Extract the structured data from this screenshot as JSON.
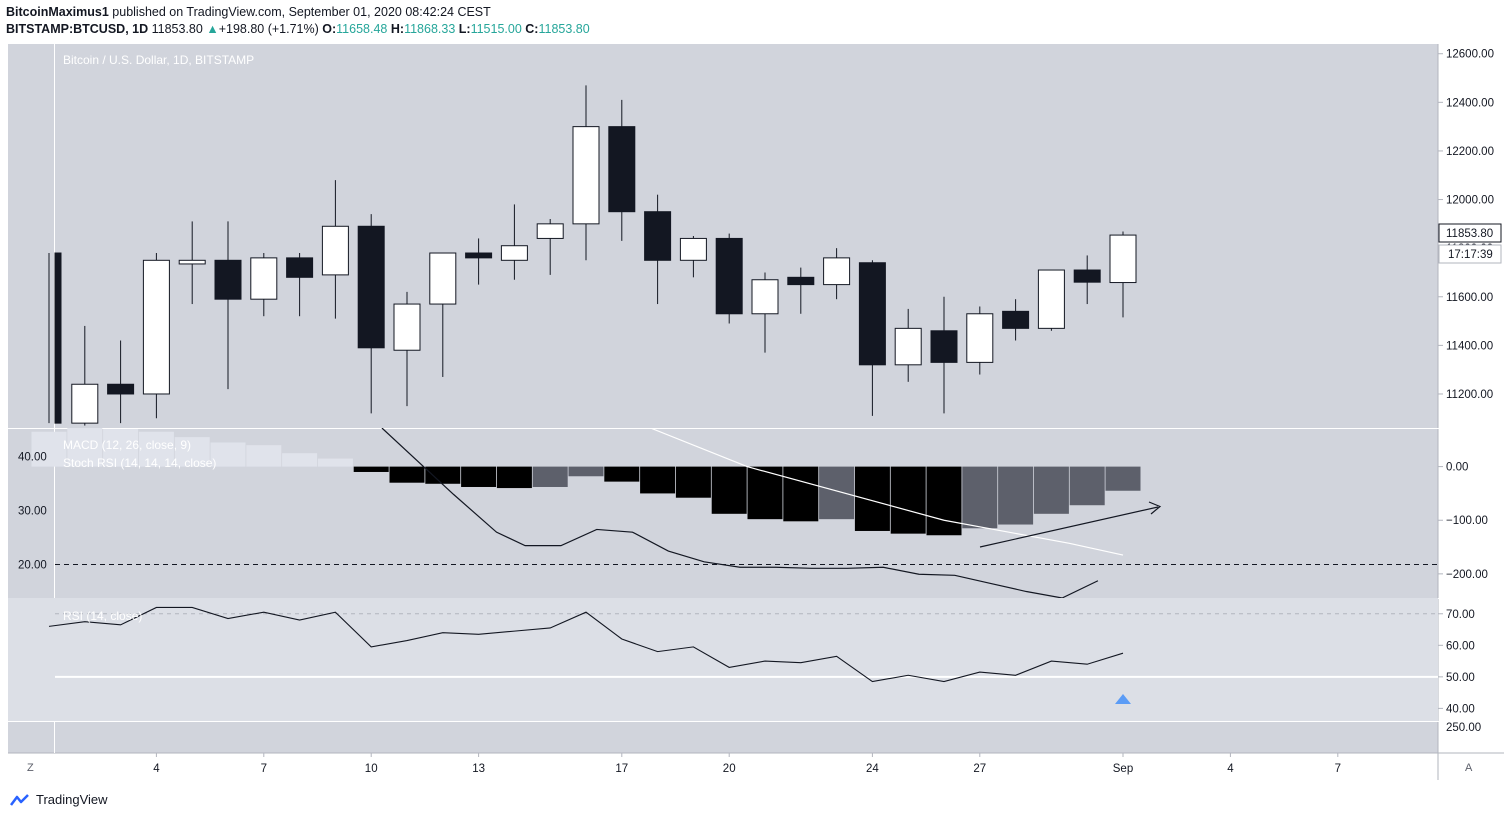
{
  "header": {
    "author": "BitcoinMaximus1",
    "published_text": "published on TradingView.com, September 01, 2020 08:42:24 CEST",
    "symbol": "BITSTAMP:BTCUSD, 1D",
    "last": "11853.80",
    "change": "+198.80 (+1.71%)",
    "o_label": "O:",
    "o": "11658.48",
    "h_label": "H:",
    "h": "11868.33",
    "l_label": "L:",
    "l": "11515.00",
    "c_label": "C:",
    "c": "11853.80"
  },
  "price_pane_label": "Bitcoin / U.S. Dollar, 1D, BITSTAMP",
  "macd_label": "MACD (12, 26, close, 9)",
  "stoch_label": "Stoch RSI (14, 14, 14, close)",
  "rsi_label": "RSI (14, close)",
  "price_badge": "11853.80",
  "countdown_badge": "17:17:39",
  "footer_brand": "TradingView",
  "corner_left": "Z",
  "corner_right": "A",
  "colors": {
    "pane_bg": "#d1d4dc",
    "up_body": "#ffffff",
    "down_body": "#131722",
    "hist_dark": "#000000",
    "hist_gray": "#5d606b",
    "hist_light": "#e0e3eb",
    "rsi_marker": "#5b9cf6"
  },
  "chart_data": [
    {
      "type": "candlestick",
      "title": "Bitcoin / U.S. Dollar, 1D, BITSTAMP",
      "x_tick_labels": [
        "4",
        "7",
        "10",
        "13",
        "17",
        "20",
        "24",
        "27",
        "Sep",
        "4",
        "7"
      ],
      "x_tick_index": [
        3,
        6,
        9,
        12,
        16,
        19,
        23,
        26,
        30,
        33,
        36
      ],
      "y_ticks": [
        11200,
        11400,
        11600,
        11800,
        12000,
        12200,
        12400,
        12600
      ],
      "y_tick_labels": [
        "11200.00",
        "11400.00",
        "11600.00",
        "11800.00",
        "12000.00",
        "12200.00",
        "12400.00",
        "12600.00"
      ],
      "ylim": [
        11060,
        12640
      ],
      "candles": [
        {
          "o": 11780,
          "h": 11780,
          "l": 11080,
          "c": 11080
        },
        {
          "o": 11080,
          "h": 11480,
          "l": 11070,
          "c": 11240
        },
        {
          "o": 11240,
          "h": 11420,
          "l": 11080,
          "c": 11200
        },
        {
          "o": 11200,
          "h": 11780,
          "l": 11100,
          "c": 11750
        },
        {
          "o": 11735,
          "h": 11910,
          "l": 11570,
          "c": 11750
        },
        {
          "o": 11750,
          "h": 11910,
          "l": 11220,
          "c": 11590
        },
        {
          "o": 11590,
          "h": 11780,
          "l": 11520,
          "c": 11760
        },
        {
          "o": 11760,
          "h": 11780,
          "l": 11520,
          "c": 11680
        },
        {
          "o": 11690,
          "h": 12080,
          "l": 11510,
          "c": 11890
        },
        {
          "o": 11890,
          "h": 11940,
          "l": 11120,
          "c": 11390
        },
        {
          "o": 11380,
          "h": 11620,
          "l": 11150,
          "c": 11570
        },
        {
          "o": 11570,
          "h": 11780,
          "l": 11270,
          "c": 11780
        },
        {
          "o": 11780,
          "h": 11840,
          "l": 11650,
          "c": 11760
        },
        {
          "o": 11750,
          "h": 11980,
          "l": 11670,
          "c": 11810
        },
        {
          "o": 11840,
          "h": 11920,
          "l": 11690,
          "c": 11900
        },
        {
          "o": 11900,
          "h": 12470,
          "l": 11750,
          "c": 12300
        },
        {
          "o": 12300,
          "h": 12410,
          "l": 11830,
          "c": 11950
        },
        {
          "o": 11950,
          "h": 12020,
          "l": 11570,
          "c": 11750
        },
        {
          "o": 11750,
          "h": 11850,
          "l": 11680,
          "c": 11840
        },
        {
          "o": 11840,
          "h": 11860,
          "l": 11490,
          "c": 11530
        },
        {
          "o": 11530,
          "h": 11700,
          "l": 11370,
          "c": 11670
        },
        {
          "o": 11680,
          "h": 11720,
          "l": 11530,
          "c": 11650
        },
        {
          "o": 11650,
          "h": 11800,
          "l": 11590,
          "c": 11760
        },
        {
          "o": 11740,
          "h": 11750,
          "l": 11110,
          "c": 11320
        },
        {
          "o": 11320,
          "h": 11550,
          "l": 11250,
          "c": 11470
        },
        {
          "o": 11460,
          "h": 11600,
          "l": 11120,
          "c": 11330
        },
        {
          "o": 11330,
          "h": 11560,
          "l": 11280,
          "c": 11530
        },
        {
          "o": 11540,
          "h": 11590,
          "l": 11420,
          "c": 11470
        },
        {
          "o": 11470,
          "h": 11710,
          "l": 11460,
          "c": 11710
        },
        {
          "o": 11710,
          "h": 11770,
          "l": 11570,
          "c": 11660
        },
        {
          "o": 11658.48,
          "h": 11868.33,
          "l": 11515.0,
          "c": 11853.8
        }
      ]
    },
    {
      "type": "bar",
      "title": "MACD (12, 26, close, 9)",
      "y_ticks": [
        0,
        -100,
        -200
      ],
      "y_tick_labels": [
        "0.00",
        "−100.00",
        "−200.00"
      ],
      "ylim": [
        -245,
        72
      ],
      "histogram": [
        65,
        75,
        70,
        65,
        55,
        45,
        40,
        25,
        15,
        -10,
        -30,
        -32,
        -38,
        -40,
        -38,
        -18,
        -28,
        -50,
        -58,
        -88,
        -98,
        -102,
        -98,
        -120,
        -125,
        -128,
        -115,
        -108,
        -88,
        -72,
        -45
      ],
      "histogram_shade": [
        "light",
        "light",
        "light",
        "light",
        "light",
        "light",
        "light",
        "light",
        "light",
        "dark",
        "dark",
        "dark",
        "dark",
        "dark",
        "gray",
        "gray",
        "dark",
        "dark",
        "dark",
        "dark",
        "dark",
        "dark",
        "gray",
        "dark",
        "dark",
        "dark",
        "gray",
        "gray",
        "gray",
        "gray",
        "gray"
      ],
      "signal": [
        [
          16.8,
          72
        ],
        [
          19.5,
          0
        ],
        [
          25,
          -100
        ],
        [
          28.5,
          -143
        ],
        [
          30,
          -165
        ]
      ]
    },
    {
      "type": "line",
      "title": "Stoch RSI (14, 14, 14, close)",
      "y_ticks": [
        20,
        30,
        40
      ],
      "y_tick_labels": [
        "20.00",
        "30.00",
        "40.00"
      ],
      "ylim": [
        13.8,
        45.3
      ],
      "reference_line": 20,
      "k": [
        [
          9.3,
          45.3
        ],
        [
          11.3,
          33
        ],
        [
          12.5,
          26
        ],
        [
          13.3,
          23.5
        ],
        [
          14.3,
          23.5
        ],
        [
          15.3,
          26.5
        ],
        [
          16.3,
          26
        ],
        [
          17.3,
          22.5
        ],
        [
          18.3,
          20.5
        ],
        [
          19.3,
          19.5
        ],
        [
          20.3,
          19.5
        ],
        [
          21.3,
          19.3
        ],
        [
          22.3,
          19.3
        ],
        [
          23.3,
          19.5
        ],
        [
          24.3,
          18.2
        ],
        [
          25.3,
          18
        ],
        [
          26.3,
          16.5
        ],
        [
          27.3,
          15
        ],
        [
          28.3,
          13.8
        ],
        [
          29.3,
          17
        ]
      ]
    },
    {
      "type": "line",
      "title": "RSI (14, close)",
      "y_ticks": [
        40,
        50,
        60,
        70
      ],
      "y_tick_labels": [
        "40.00",
        "50.00",
        "60.00",
        "70.00"
      ],
      "extra_tick_label": "250.00",
      "ylim": [
        36,
        75
      ],
      "reference_lines": [
        50,
        70
      ],
      "values": [
        66,
        67.5,
        66.5,
        72,
        72,
        68.5,
        70.5,
        68,
        70.5,
        59.5,
        61.5,
        64,
        63.5,
        64.5,
        65.5,
        70.5,
        62,
        58,
        59.5,
        53,
        55,
        54.5,
        56.5,
        48.5,
        50.5,
        48.5,
        51.5,
        50.5,
        55,
        54,
        57.5
      ]
    }
  ]
}
